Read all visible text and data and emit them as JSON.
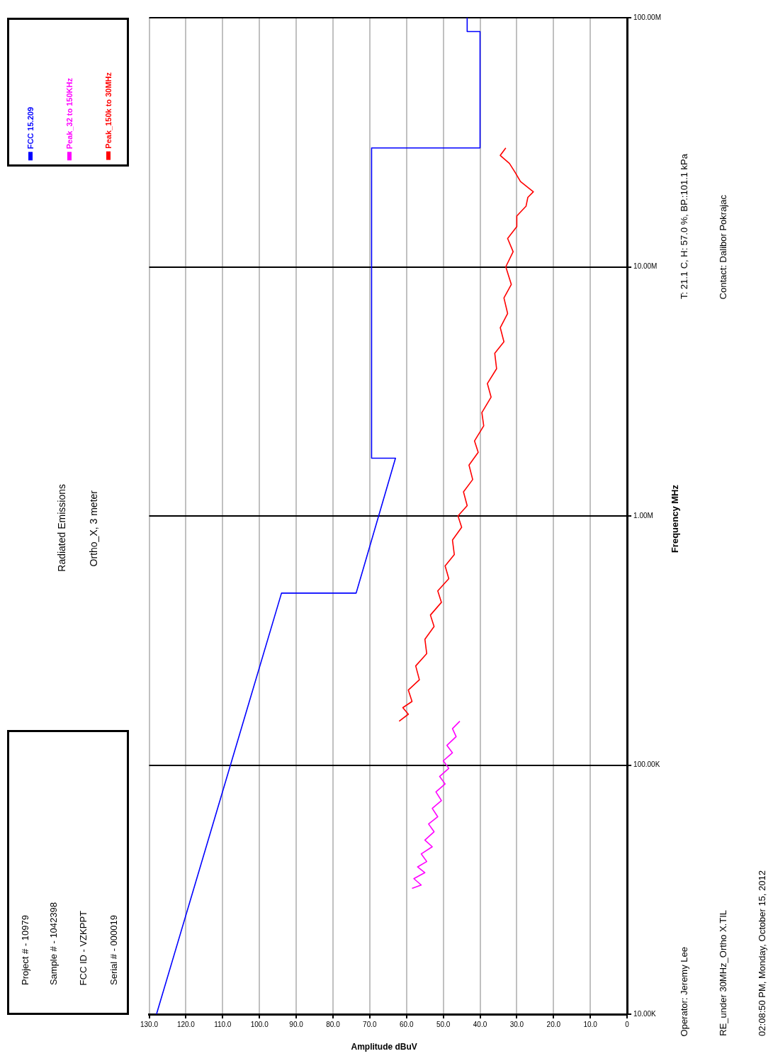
{
  "chart_data": {
    "type": "line",
    "title": "Radiated Emissions",
    "subtitle": "Ortho_X, 3 meter",
    "xlabel": "Amplitude dBuV",
    "ylabel": "Frequency MHz",
    "log": "y",
    "xlim": [
      130,
      0
    ],
    "xticks": [
      {
        "value": 130,
        "label": "130.0"
      },
      {
        "value": 120,
        "label": "120.0"
      },
      {
        "value": 110,
        "label": "110.0"
      },
      {
        "value": 100,
        "label": "100.0"
      },
      {
        "value": 90,
        "label": "90.0"
      },
      {
        "value": 80,
        "label": "80.0"
      },
      {
        "value": 70,
        "label": "70.0"
      },
      {
        "value": 60,
        "label": "60.0"
      },
      {
        "value": 50,
        "label": "50.0"
      },
      {
        "value": 40,
        "label": "40.0"
      },
      {
        "value": 30,
        "label": "30.0"
      },
      {
        "value": 20,
        "label": "20.0"
      },
      {
        "value": 10,
        "label": "10.0"
      },
      0
    ],
    "ylim": [
      10000,
      100000000
    ],
    "yticks": [
      {
        "value": 10000,
        "label": "10.00K"
      },
      {
        "value": 100000,
        "label": "100.00K"
      },
      {
        "value": 1000000,
        "label": "1.00M"
      },
      {
        "value": 10000000,
        "label": "10.00M"
      },
      {
        "value": 100000000,
        "label": "100.00M"
      }
    ],
    "grid": true,
    "legend": "top left",
    "series": [
      {
        "name": "FCC 15.209",
        "color": "#0000ff",
        "x": [
          128,
          94,
          73.7,
          63,
          69.5,
          69.5,
          40,
          40,
          43.5,
          43.5
        ],
        "values": [
          10000,
          490000,
          490000,
          1705000,
          1705000,
          30000000,
          30000000,
          88000000,
          88000000,
          100000000
        ]
      },
      {
        "name": "Peak_32 to 150KHz",
        "color": "#ff00ff",
        "x": [
          58.5,
          56,
          58,
          55,
          57,
          54.5,
          56,
          53,
          55,
          52.5,
          54,
          51.5,
          53,
          50.5,
          52,
          49.5,
          51,
          48.5,
          50,
          47.5,
          49,
          46.5,
          47.5,
          45.5
        ],
        "values": [
          32000,
          33000,
          35000,
          37000,
          39000,
          41000,
          44000,
          47000,
          50000,
          54000,
          58000,
          62000,
          67000,
          72000,
          78000,
          84000,
          90000,
          97000,
          104000,
          112000,
          120000,
          130000,
          140000,
          150000
        ]
      },
      {
        "name": "Peak_150k to 30MHz",
        "color": "#ff0000",
        "x": [
          62,
          59.5,
          61,
          58.5,
          59.5,
          56.5,
          57.5,
          54.5,
          55,
          52.5,
          53.5,
          50.5,
          51.5,
          48.5,
          49.5,
          47,
          47.5,
          45,
          46,
          43.5,
          44.5,
          42,
          43,
          40.5,
          41.5,
          39,
          39.5,
          37,
          38,
          35.5,
          36,
          33.5,
          34.5,
          32.5,
          33.5,
          31.5,
          33,
          31,
          32.5,
          30,
          30,
          27.5,
          27,
          25.5,
          29,
          30.5,
          32,
          34.5,
          33
        ],
        "values": [
          150000,
          160000,
          170000,
          180000,
          200000,
          220000,
          250000,
          280000,
          320000,
          360000,
          400000,
          450000,
          500000,
          560000,
          630000,
          700000,
          800000,
          900000,
          1000000,
          1100000,
          1250000,
          1400000,
          1600000,
          1800000,
          2000000,
          2300000,
          2600000,
          3000000,
          3400000,
          3900000,
          4500000,
          5000000,
          5700000,
          6500000,
          7500000,
          8500000,
          10000000,
          11500000,
          13000000,
          14500000,
          16000000,
          17500000,
          19000000,
          20000000,
          22000000,
          24000000,
          26000000,
          28000000,
          30000000
        ]
      }
    ],
    "annotations": [
      "Project # - 10979",
      "Sample # - 1042398",
      "FCC ID - VZKPPT",
      "Serial # - 000019",
      "T: 21.1 C, H: 57.0 %, BP.:101.1 kPa",
      "Contact: Dalibor Pokrajac",
      "Operator: Jeremy Lee",
      "RE_under 30MHz_Ortho X.TIL",
      "02:08:50 PM, Monday, October 15, 2012"
    ]
  }
}
